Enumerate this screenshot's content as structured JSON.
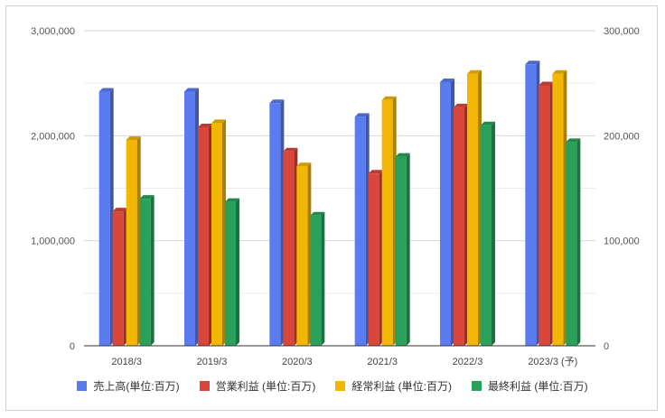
{
  "chart_data": {
    "type": "bar",
    "categories": [
      "2018/3",
      "2019/3",
      "2020/3",
      "2021/3",
      "2022/3",
      "2023/3 (予)"
    ],
    "series": [
      {
        "name": "売上高(単位:百万)",
        "axis": "left",
        "color": "#5b7cf0",
        "values": [
          2420000,
          2420000,
          2310000,
          2180000,
          2510000,
          2680000
        ]
      },
      {
        "name": "営業利益 (単位:百万)",
        "axis": "right",
        "color": "#d9463a",
        "values": [
          128000,
          208000,
          185000,
          164000,
          227000,
          248000
        ]
      },
      {
        "name": "経常利益 (単位:百万)",
        "axis": "right",
        "color": "#f2b705",
        "values": [
          196000,
          212000,
          171000,
          234000,
          259000,
          259000
        ]
      },
      {
        "name": "最終利益 (単位:百万)",
        "axis": "right",
        "color": "#2aa05a",
        "values": [
          140000,
          137000,
          124000,
          180000,
          210000,
          194000
        ]
      }
    ],
    "y_left": {
      "ylim": [
        0,
        3000000
      ],
      "ticks": [
        0,
        1000000,
        2000000,
        3000000
      ],
      "tick_labels": [
        "0",
        "1,000,000",
        "2,000,000",
        "3,000,000"
      ]
    },
    "y_right": {
      "ylim": [
        0,
        300000
      ],
      "ticks": [
        0,
        100000,
        200000,
        300000
      ],
      "tick_labels": [
        "0",
        "100,000",
        "200,000",
        "300,000"
      ]
    },
    "grid": true,
    "legend_position": "bottom",
    "style": "3d-bar"
  }
}
